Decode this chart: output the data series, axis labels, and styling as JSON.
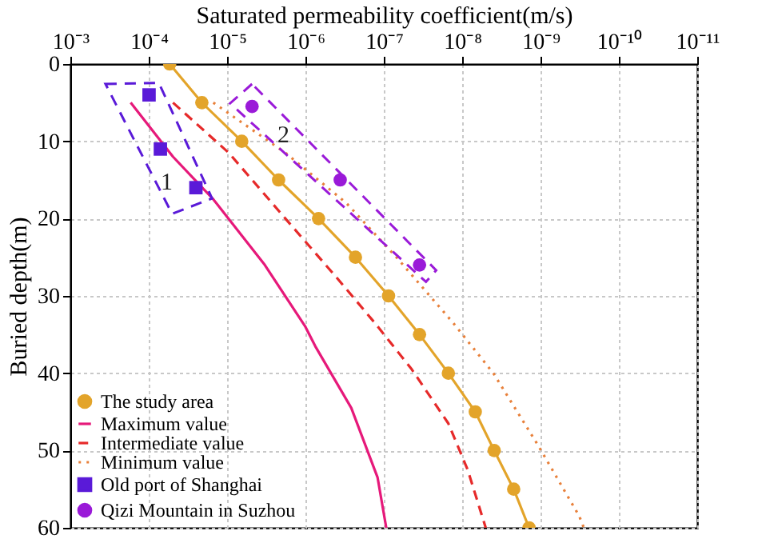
{
  "chart_data": {
    "type": "line",
    "xlabel": "Saturated permeability coefficient(m/s)",
    "ylabel": "Buried depth(m)",
    "log": "x",
    "xlim": [
      0.001,
      1e-11
    ],
    "xticks": [
      {
        "value": 0.001,
        "label": "10⁻³"
      },
      {
        "value": 0.0001,
        "label": "10⁻⁴"
      },
      {
        "value": 1e-05,
        "label": "10⁻⁵"
      },
      {
        "value": 1e-06,
        "label": "10⁻⁶"
      },
      {
        "value": 1e-07,
        "label": "10⁻⁷"
      },
      {
        "value": 1e-08,
        "label": "10⁻⁸"
      },
      {
        "value": 1e-09,
        "label": "10⁻⁹"
      },
      {
        "value": 1e-10,
        "label": "10⁻¹⁰"
      },
      {
        "value": 1e-11,
        "label": "10⁻¹¹"
      }
    ],
    "ylim": [
      60,
      0
    ],
    "yticks": [
      0,
      10,
      20,
      30,
      40,
      50,
      60
    ],
    "grid": true,
    "legend": "bottom left",
    "series": [
      {
        "name": "The study area",
        "type": "line",
        "color": "#e3a42a",
        "marker": "circle",
        "line_style": "solid",
        "x": [
          5.4e-05,
          2.1e-05,
          6.5e-06,
          2.2e-06,
          6.8e-07,
          2.3e-07,
          8.7e-08,
          3.5e-08,
          1.5e-08,
          6.8e-09,
          3.9e-09,
          2.2e-09,
          1.4e-09
        ],
        "values": [
          0,
          5,
          10,
          15,
          20,
          25,
          30,
          35,
          40,
          45,
          50,
          55,
          60
        ]
      },
      {
        "name": "Maximum value",
        "type": "line",
        "color": "#e6197a",
        "marker": "none",
        "line_style": "solid",
        "x": [
          0.00017,
          4.9e-05,
          1.5e-05,
          3.3e-06,
          1e-06,
          7.5e-07,
          2.6e-07,
          1.2e-07,
          9.3e-08
        ],
        "values": [
          5,
          12,
          17.5,
          26,
          34,
          36.5,
          44.5,
          53.5,
          60
        ]
      },
      {
        "name": "Intermediate value",
        "type": "line",
        "color": "#e62a2a",
        "marker": "none",
        "line_style": "dashed",
        "x": [
          4.9e-05,
          9.5e-06,
          1.8e-06,
          4.1e-07,
          1.3e-07,
          4.4e-08,
          1.5e-08,
          8.5e-09,
          5e-09
        ],
        "values": [
          5,
          11.5,
          20,
          27.5,
          33.5,
          39.5,
          46.5,
          52.5,
          60
        ]
      },
      {
        "name": "Minimum value",
        "type": "line",
        "color": "#e8803a",
        "marker": "none",
        "line_style": "dotted",
        "x": [
          1.5e-05,
          1.8e-06,
          3e-07,
          6.9e-08,
          1.3e-08,
          4e-09,
          1.05e-09,
          3.2e-10,
          2.8e-10
        ],
        "values": [
          5,
          11.5,
          18,
          25,
          33.5,
          40,
          49.5,
          58.5,
          60
        ]
      },
      {
        "name": "Old port of Shanghai",
        "type": "scatter",
        "color": "#5a1ad8",
        "marker": "square",
        "x": [
          9.9e-05,
          7.1e-05,
          2.5e-05
        ],
        "values": [
          4,
          11,
          16
        ]
      },
      {
        "name": "Qizi Mountain in Suzhou",
        "type": "scatter",
        "color": "#9a1ad8",
        "marker": "circle",
        "x": [
          4.8e-06,
          3.6e-07,
          3.5e-08
        ],
        "values": [
          5.5,
          15,
          26
        ]
      }
    ],
    "annotations": [
      "1",
      "2"
    ]
  }
}
